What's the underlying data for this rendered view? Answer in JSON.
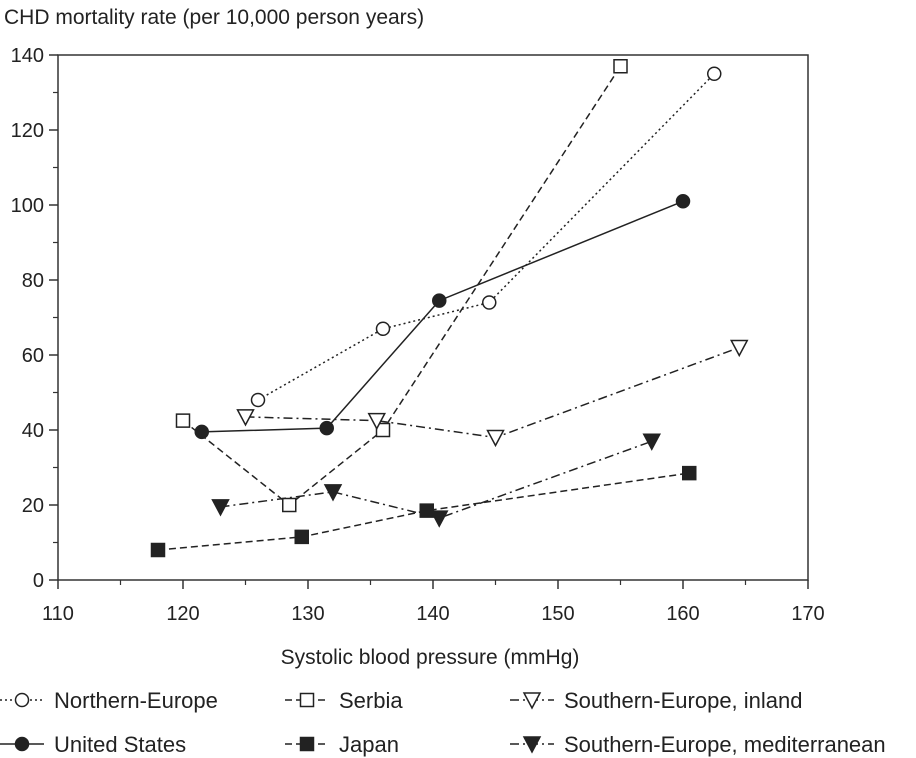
{
  "chart_data": {
    "type": "line",
    "title": "",
    "ylabel": "CHD mortality rate (per 10,000 person years)",
    "xlabel": "Systolic blood pressure (mmHg)",
    "xlim": [
      110,
      170
    ],
    "ylim": [
      0,
      140
    ],
    "xticks": [
      110,
      120,
      130,
      140,
      150,
      160,
      170
    ],
    "yticks": [
      0,
      20,
      40,
      60,
      80,
      100,
      120,
      140
    ],
    "grid": false,
    "legend_position": "bottom",
    "series": [
      {
        "name": "Northern-Europe",
        "marker": "open-circle",
        "line_style": "dotted",
        "points": [
          [
            126,
            48
          ],
          [
            136,
            67
          ],
          [
            144.5,
            74
          ],
          [
            162.5,
            135
          ]
        ]
      },
      {
        "name": "United States",
        "marker": "filled-circle",
        "line_style": "solid",
        "points": [
          [
            121.5,
            39.5
          ],
          [
            131.5,
            40.5
          ],
          [
            140.5,
            74.5
          ],
          [
            160,
            101
          ]
        ]
      },
      {
        "name": "Serbia",
        "marker": "open-square",
        "line_style": "dashed",
        "points": [
          [
            120,
            42.5
          ],
          [
            128.5,
            20
          ],
          [
            136,
            40
          ],
          [
            155,
            137
          ]
        ]
      },
      {
        "name": "Japan",
        "marker": "filled-square",
        "line_style": "dashed",
        "points": [
          [
            118,
            8
          ],
          [
            129.5,
            11.5
          ],
          [
            139.5,
            18.5
          ],
          [
            160.5,
            28.5
          ]
        ]
      },
      {
        "name": "Southern-Europe, inland",
        "marker": "open-triangle-down",
        "line_style": "dash-dot",
        "points": [
          [
            125,
            43.5
          ],
          [
            135.5,
            42.5
          ],
          [
            145,
            38
          ],
          [
            164.5,
            62
          ]
        ]
      },
      {
        "name": "Southern-Europe, mediterranean",
        "marker": "filled-triangle-down",
        "line_style": "dash-dot",
        "points": [
          [
            123,
            19.5
          ],
          [
            132,
            23.5
          ],
          [
            140.5,
            16.5
          ],
          [
            157.5,
            37
          ]
        ]
      }
    ],
    "legend_order": [
      "Northern-Europe",
      "Serbia",
      "Southern-Europe, inland",
      "United States",
      "Japan",
      "Southern-Europe, mediterranean"
    ]
  }
}
